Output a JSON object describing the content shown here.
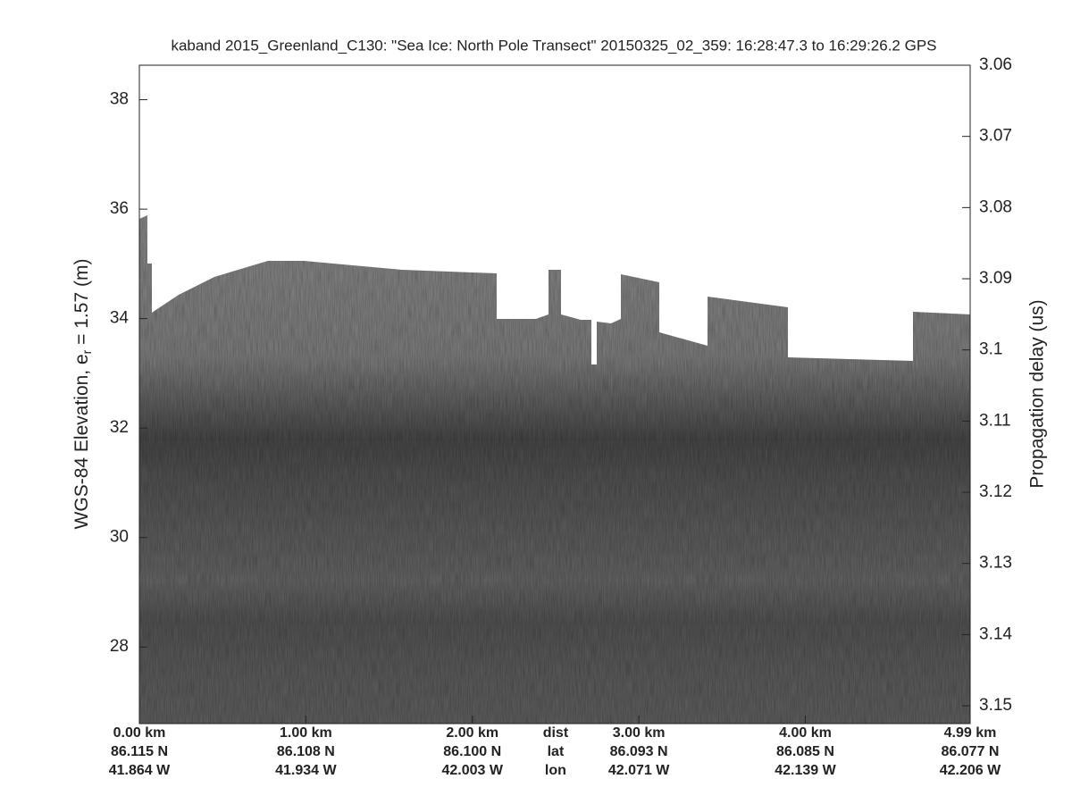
{
  "chart_data": {
    "type": "echogram",
    "title": "kaband 2015_Greenland_C130: \"Sea Ice: North Pole Transect\"  20150325_02_359: 16:28:47.3 to 16:29:26.2 GPS",
    "ylabel": {
      "text": "WGS-84 Elevation, e",
      "subscript": "r",
      "suffix": " = 1.57 (m)"
    },
    "y2label": "Propagation delay (us)",
    "ylim": [
      26.6,
      38.63
    ],
    "yticks": [
      28,
      30,
      32,
      34,
      36,
      38
    ],
    "y2lim": [
      3.1525,
      3.06
    ],
    "y2ticks": [
      3.06,
      3.07,
      3.08,
      3.09,
      3.1,
      3.11,
      3.12,
      3.13,
      3.14,
      3.15
    ],
    "xlim": [
      0,
      4.99
    ],
    "xticks": [
      {
        "value": 0,
        "label": "0.00 km"
      },
      {
        "value": 1,
        "label": "1.00 km"
      },
      {
        "value": 2,
        "label": "2.00 km"
      },
      {
        "value": 3,
        "label": "3.00 km"
      },
      {
        "value": 4,
        "label": "4.00 km"
      },
      {
        "value": 4.99,
        "label": "4.99 km"
      }
    ],
    "xtick_lat": [
      "86.115 N",
      "86.108 N",
      "86.100 N",
      "86.093 N",
      "86.085 N",
      "86.077 N"
    ],
    "xtick_lon": [
      "41.864 W",
      "41.934 W",
      "42.003 W",
      "42.071 W",
      "42.139 W",
      "42.206 W"
    ],
    "xrow_labels": [
      "dist",
      "lat",
      "lon"
    ]
  }
}
